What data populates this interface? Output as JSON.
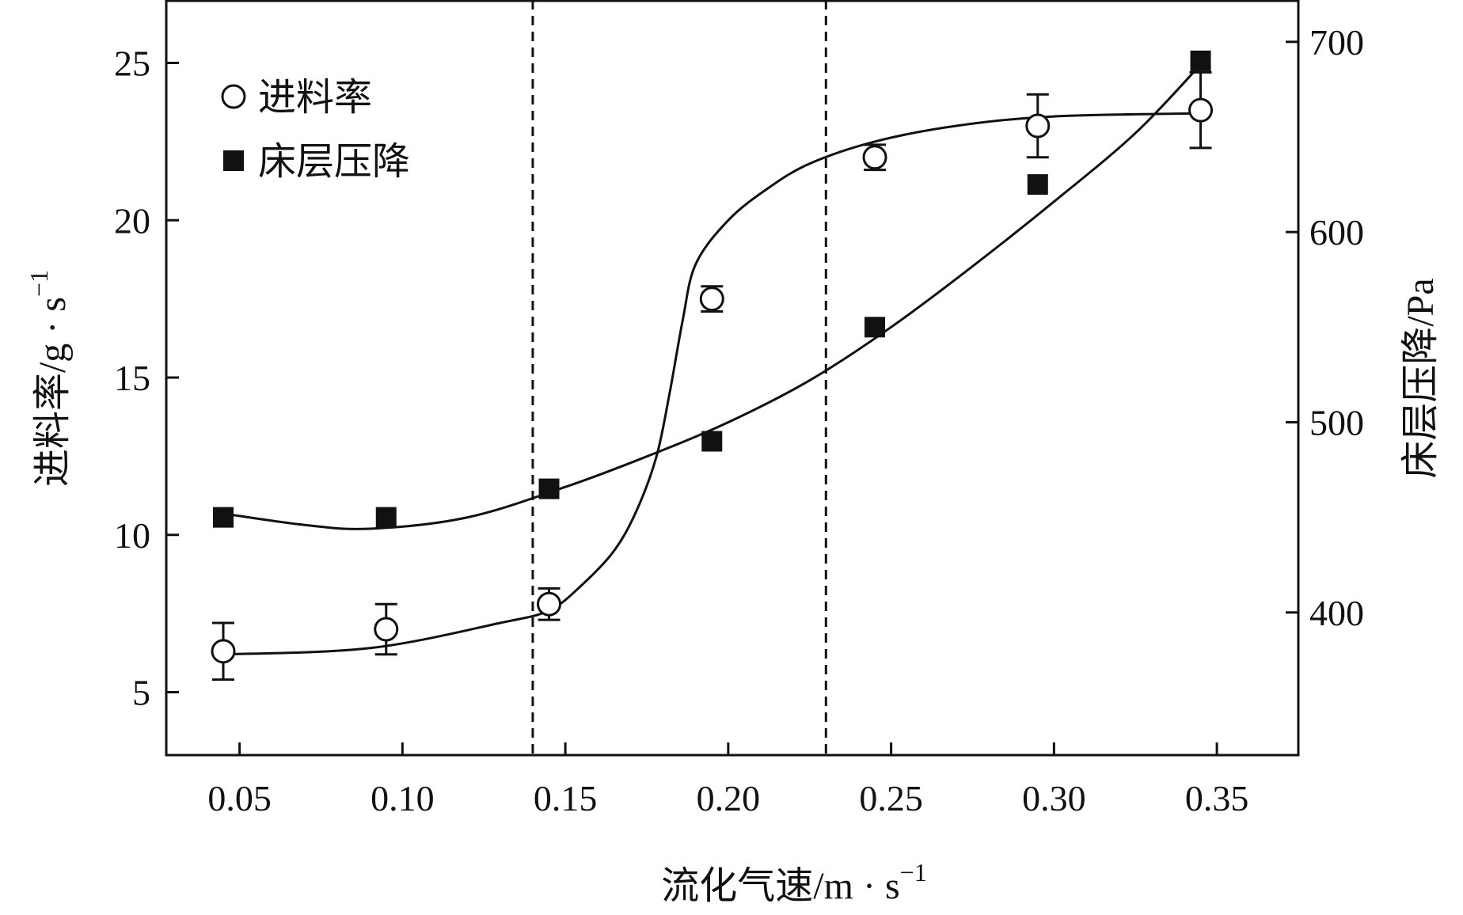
{
  "chart_data": {
    "type": "scatter",
    "x": [
      0.045,
      0.095,
      0.145,
      0.195,
      0.245,
      0.295,
      0.345
    ],
    "xlabel": "流化气速/m · s",
    "xlabel_sup": "−1",
    "xlim": [
      0.0275,
      0.375
    ],
    "xticks": [
      "0.05",
      "0.10",
      "0.15",
      "0.20",
      "0.25",
      "0.30",
      "0.35"
    ],
    "xtick_values": [
      0.05,
      0.1,
      0.15,
      0.2,
      0.25,
      0.3,
      0.35
    ],
    "y_left": {
      "label": "进料率/g · s",
      "label_sup": "−1",
      "lim": [
        3,
        27
      ],
      "ticks": [
        "5",
        "10",
        "15",
        "20",
        "25"
      ],
      "tick_values": [
        5,
        10,
        15,
        20,
        25
      ]
    },
    "y_right": {
      "label": "床层压降/Pa",
      "lim": [
        325,
        722
      ],
      "ticks": [
        "400",
        "500",
        "600",
        "700"
      ],
      "tick_values": [
        400,
        500,
        600,
        700
      ]
    },
    "series": [
      {
        "name": "进料率",
        "axis": "left",
        "marker": "open-circle",
        "values": [
          6.3,
          7.0,
          7.8,
          17.5,
          22.0,
          23.0,
          23.5
        ],
        "error": [
          0.9,
          0.8,
          0.5,
          0.4,
          0.4,
          1.0,
          1.2
        ],
        "fit_curve": [
          [
            0.045,
            6.2
          ],
          [
            0.09,
            6.4
          ],
          [
            0.13,
            7.2
          ],
          [
            0.145,
            7.6
          ],
          [
            0.155,
            8.4
          ],
          [
            0.165,
            9.5
          ],
          [
            0.172,
            10.8
          ],
          [
            0.178,
            12.5
          ],
          [
            0.182,
            14.5
          ],
          [
            0.186,
            16.8
          ],
          [
            0.19,
            18.6
          ],
          [
            0.2,
            20.0
          ],
          [
            0.212,
            21.0
          ],
          [
            0.225,
            21.8
          ],
          [
            0.245,
            22.5
          ],
          [
            0.27,
            23.0
          ],
          [
            0.3,
            23.3
          ],
          [
            0.345,
            23.4
          ]
        ]
      },
      {
        "name": "床层压降",
        "axis": "right",
        "marker": "filled-square",
        "values": [
          450,
          450,
          465,
          490,
          550,
          625,
          690
        ],
        "fit_curve": [
          [
            0.045,
            452
          ],
          [
            0.07,
            446
          ],
          [
            0.09,
            444
          ],
          [
            0.12,
            450
          ],
          [
            0.15,
            466
          ],
          [
            0.175,
            482
          ],
          [
            0.2,
            500
          ],
          [
            0.225,
            522
          ],
          [
            0.25,
            550
          ],
          [
            0.275,
            582
          ],
          [
            0.3,
            616
          ],
          [
            0.325,
            652
          ],
          [
            0.345,
            688
          ]
        ]
      }
    ],
    "reference_lines": [
      0.14,
      0.23
    ],
    "legend_position": "top-left",
    "grid": false
  }
}
